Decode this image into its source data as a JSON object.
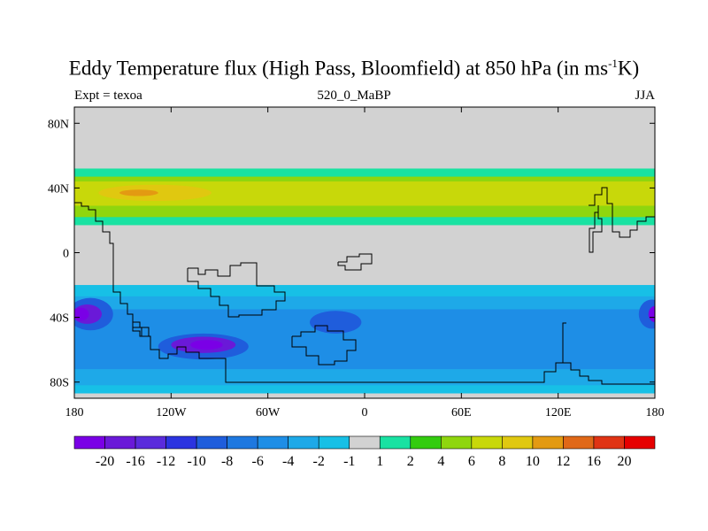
{
  "header": {
    "title_main": "Eddy Temperature flux (High Pass, Bloomfield) at 850 hPa (in ms",
    "title_sup": "-1",
    "title_end": "K)",
    "left_label": "Expt = texoa",
    "center_label": "520_0_MaBP",
    "right_label": "JJA"
  },
  "chart_data": {
    "type": "heatmap",
    "xlim": [
      -180,
      180
    ],
    "ylim": [
      -90,
      90
    ],
    "xticks": [
      {
        "value": -180,
        "label": "180"
      },
      {
        "value": -120,
        "label": "120W"
      },
      {
        "value": -60,
        "label": "60W"
      },
      {
        "value": 0,
        "label": "0"
      },
      {
        "value": 60,
        "label": "60E"
      },
      {
        "value": 120,
        "label": "120E"
      },
      {
        "value": 180,
        "label": "180"
      }
    ],
    "yticks": [
      {
        "value": 80,
        "label": "80N"
      },
      {
        "value": 40,
        "label": "40N"
      },
      {
        "value": 0,
        "label": "0"
      },
      {
        "value": -40,
        "label": "40S"
      },
      {
        "value": -80,
        "label": "80S"
      }
    ],
    "colorbar": {
      "colors": [
        "#7a00e6",
        "#6a19d8",
        "#5a2bdc",
        "#2b34e0",
        "#1f5ddc",
        "#1e78e0",
        "#1e8ee6",
        "#1ea9e8",
        "#17c0e6",
        "#d2d2d2",
        "#19e2a2",
        "#33cc0f",
        "#8fd60e",
        "#c8d80a",
        "#e0c810",
        "#e39a12",
        "#e06818",
        "#e03414",
        "#e60000"
      ],
      "labels": [
        "-20",
        "-16",
        "-12",
        "-10",
        "-8",
        "-6",
        "-4",
        "-2",
        "-1",
        "1",
        "2",
        "4",
        "6",
        "8",
        "10",
        "12",
        "16",
        "20"
      ]
    },
    "field_regions": [
      {
        "name": "nh-band-2",
        "color_index": 10,
        "lat_range": [
          17,
          52
        ]
      },
      {
        "name": "nh-band-4",
        "color_index": 12,
        "lat_range": [
          22,
          47
        ]
      },
      {
        "name": "nh-band-6",
        "color_index": 13,
        "lat_range": [
          29,
          44
        ]
      },
      {
        "name": "nh-core-8",
        "center": [
          -130,
          37
        ],
        "radius": [
          35,
          5
        ],
        "color_index": 14
      },
      {
        "name": "nh-core-10",
        "center": [
          -140,
          37
        ],
        "radius": [
          12,
          2
        ],
        "color_index": 15
      },
      {
        "name": "sh-band-1",
        "color_index": 8,
        "lat_range": [
          -87,
          -20
        ]
      },
      {
        "name": "sh-band-2",
        "color_index": 7,
        "lat_range": [
          -82,
          -27
        ]
      },
      {
        "name": "sh-band-4",
        "color_index": 6,
        "lat_range": [
          -72,
          -35
        ]
      },
      {
        "name": "sh-core-west-6",
        "center": [
          -170,
          -38
        ],
        "radius": [
          14,
          10
        ],
        "color_index": 4
      },
      {
        "name": "sh-core-west-12",
        "center": [
          -172,
          -38
        ],
        "radius": [
          9,
          6
        ],
        "color_index": 1
      },
      {
        "name": "sh-core-west-20",
        "center": [
          -176,
          -38
        ],
        "radius": [
          5,
          4
        ],
        "color_index": 0
      },
      {
        "name": "sh-core-mid-6",
        "center": [
          -100,
          -58
        ],
        "radius": [
          28,
          8
        ],
        "color_index": 4
      },
      {
        "name": "sh-core-mid-12",
        "center": [
          -100,
          -57
        ],
        "radius": [
          20,
          5
        ],
        "color_index": 1
      },
      {
        "name": "sh-core-mid-20",
        "center": [
          -98,
          -57
        ],
        "radius": [
          10,
          3
        ],
        "color_index": 0
      },
      {
        "name": "sh-core-east-6",
        "center": [
          178,
          -38
        ],
        "radius": [
          8,
          9
        ],
        "color_index": 4
      },
      {
        "name": "sh-core-east-12",
        "center": [
          180,
          -38
        ],
        "radius": [
          4,
          5
        ],
        "color_index": 0
      },
      {
        "name": "sh-mid-6",
        "center": [
          -18,
          -43
        ],
        "radius": [
          16,
          7
        ],
        "color_index": 4
      }
    ]
  }
}
